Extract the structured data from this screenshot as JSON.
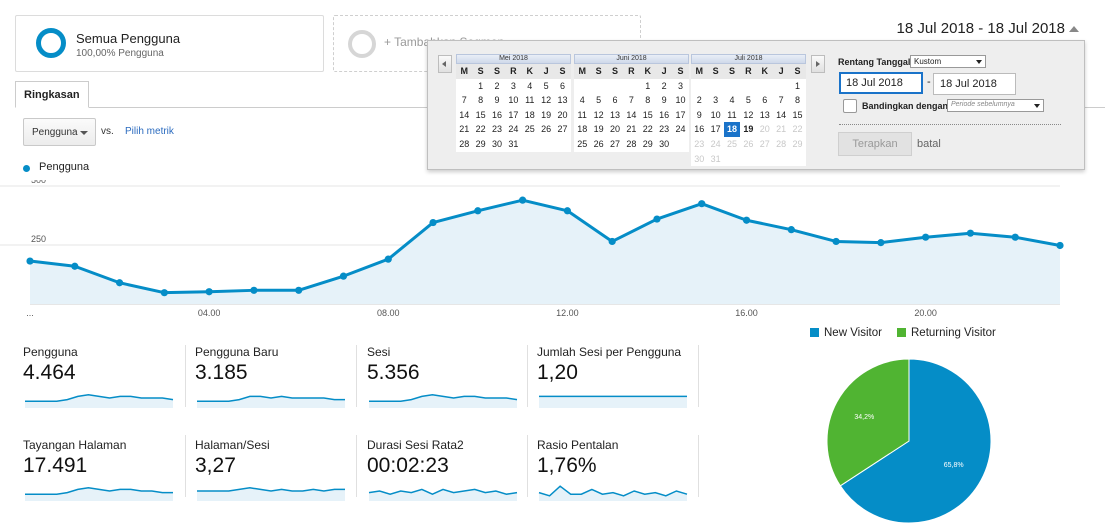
{
  "segments": {
    "primary": {
      "title": "Semua Pengguna",
      "subtitle": "100,00% Pengguna"
    },
    "add": {
      "label": "+ Tambahkan Segmen"
    }
  },
  "date_range": {
    "label": "18 Jul 2018 - 18 Jul 2018"
  },
  "tabs": [
    {
      "label": "Ringkasan"
    }
  ],
  "metric_selector": {
    "selected": "Pengguna",
    "vs": "vs.",
    "pick_metric": "Pilih metrik"
  },
  "legend": {
    "series": "Pengguna"
  },
  "chart_data": [
    {
      "type": "area",
      "series": [
        {
          "name": "Pengguna",
          "values": [
            182,
            160,
            90,
            48,
            52,
            58,
            58,
            118,
            190,
            345,
            395,
            440,
            395,
            265,
            360,
            425,
            355,
            315,
            265,
            260,
            283,
            300,
            283,
            248
          ]
        }
      ],
      "x": [
        "00.00",
        "01.00",
        "02.00",
        "03.00",
        "04.00",
        "05.00",
        "06.00",
        "07.00",
        "08.00",
        "09.00",
        "10.00",
        "11.00",
        "12.00",
        "13.00",
        "14.00",
        "15.00",
        "16.00",
        "17.00",
        "18.00",
        "19.00",
        "20.00",
        "21.00",
        "22.00",
        "23.00"
      ],
      "x_tick_labels": [
        "...",
        "04.00",
        "08.00",
        "12.00",
        "16.00",
        "20.00"
      ],
      "y_ticks": [
        250,
        500
      ],
      "ylim": [
        0,
        500
      ],
      "color": "#058dc7",
      "grid": true
    },
    {
      "type": "pie",
      "slices": [
        {
          "name": "New Visitor",
          "value": 65.8,
          "label": "65,8%",
          "color": "#058dc7"
        },
        {
          "name": "Returning Visitor",
          "value": 34.2,
          "label": "34,2%",
          "color": "#50b432"
        }
      ],
      "legend_position": "top"
    }
  ],
  "metrics": [
    {
      "name": "Pengguna",
      "value": "4.464",
      "spark": [
        3,
        3,
        3,
        3,
        4,
        6,
        7,
        6,
        5,
        6,
        6,
        5,
        5,
        5,
        4
      ]
    },
    {
      "name": "Pengguna Baru",
      "value": "3.185",
      "spark": [
        3,
        3,
        3,
        3,
        4,
        6,
        6,
        5,
        6,
        5,
        5,
        5,
        5,
        4,
        4
      ]
    },
    {
      "name": "Sesi",
      "value": "5.356",
      "spark": [
        3,
        3,
        3,
        3,
        4,
        6,
        7,
        6,
        5,
        6,
        6,
        5,
        5,
        5,
        4
      ]
    },
    {
      "name": "Jumlah Sesi per Pengguna",
      "value": "1,20",
      "spark": [
        6,
        6,
        6,
        6,
        6,
        6,
        6,
        6,
        6,
        6,
        6,
        6,
        6,
        6,
        6
      ]
    },
    {
      "name": "Tayangan Halaman",
      "value": "17.491",
      "spark": [
        3,
        3,
        3,
        3,
        4,
        6,
        7,
        6,
        5,
        6,
        6,
        5,
        5,
        4,
        4
      ]
    },
    {
      "name": "Halaman/Sesi",
      "value": "3,27",
      "spark": [
        5,
        5,
        5,
        5,
        6,
        7,
        6,
        5,
        6,
        5,
        5,
        6,
        5,
        6,
        6
      ]
    },
    {
      "name": "Durasi Sesi Rata2",
      "value": "00:02:23",
      "spark": [
        4,
        5,
        3,
        5,
        4,
        6,
        3,
        6,
        4,
        5,
        6,
        4,
        5,
        3,
        4
      ]
    },
    {
      "name": "Rasio Pentalan",
      "value": "1,76%",
      "spark": [
        4,
        2,
        8,
        3,
        3,
        6,
        3,
        4,
        2,
        5,
        3,
        4,
        2,
        5,
        3
      ]
    }
  ],
  "pie_legend": [
    {
      "label": "New Visitor",
      "color": "#058dc7"
    },
    {
      "label": "Returning Visitor",
      "color": "#50b432"
    }
  ],
  "datepicker": {
    "weekdays": [
      "M",
      "S",
      "S",
      "R",
      "K",
      "J",
      "S"
    ],
    "months": [
      {
        "title": "Mei 2018",
        "lead": 1,
        "days": 31,
        "dim_from": 99,
        "selected": 0,
        "bold": 0
      },
      {
        "title": "Juni 2018",
        "lead": 4,
        "days": 30,
        "dim_from": 99,
        "selected": 0,
        "bold": 0
      },
      {
        "title": "Juli 2018",
        "lead": 6,
        "days": 31,
        "dim_from": 20,
        "selected": 18,
        "bold": 19
      }
    ],
    "range_label": "Rentang Tanggal:",
    "range_option": "Kustom",
    "start_date": "18 Jul 2018",
    "end_date": "18 Jul 2018",
    "dash": "-",
    "compare_label": "Bandingkan dengan:",
    "compare_option": "Periode sebelumnya",
    "apply_label": "Terapkan",
    "cancel_label": "batal"
  }
}
